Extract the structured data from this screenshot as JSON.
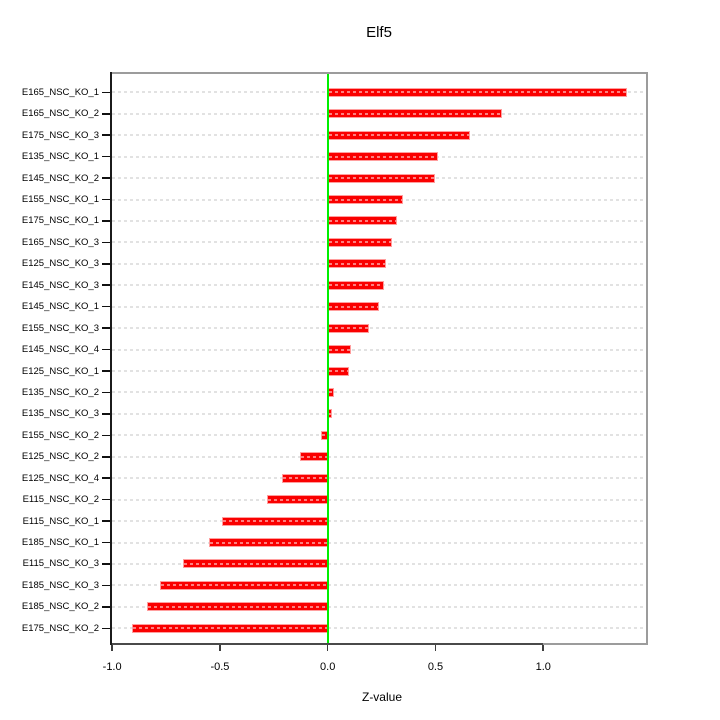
{
  "chart_data": {
    "type": "bar",
    "orientation": "horizontal",
    "title": "Elf5",
    "xlabel": "Z-value",
    "ylabel": "",
    "categories": [
      "E165_NSC_KO_1",
      "E165_NSC_KO_2",
      "E175_NSC_KO_3",
      "E135_NSC_KO_1",
      "E145_NSC_KO_2",
      "E155_NSC_KO_1",
      "E175_NSC_KO_1",
      "E165_NSC_KO_3",
      "E125_NSC_KO_3",
      "E145_NSC_KO_3",
      "E145_NSC_KO_1",
      "E155_NSC_KO_3",
      "E145_NSC_KO_4",
      "E125_NSC_KO_1",
      "E135_NSC_KO_2",
      "E135_NSC_KO_3",
      "E155_NSC_KO_2",
      "E125_NSC_KO_2",
      "E125_NSC_KO_4",
      "E115_NSC_KO_2",
      "E115_NSC_KO_1",
      "E185_NSC_KO_1",
      "E115_NSC_KO_3",
      "E185_NSC_KO_3",
      "E185_NSC_KO_2",
      "E175_NSC_KO_2"
    ],
    "values": [
      1.39,
      0.81,
      0.66,
      0.51,
      0.5,
      0.35,
      0.32,
      0.3,
      0.27,
      0.26,
      0.24,
      0.19,
      0.11,
      0.1,
      0.03,
      0.02,
      -0.03,
      -0.13,
      -0.21,
      -0.28,
      -0.49,
      -0.55,
      -0.67,
      -0.78,
      -0.84,
      -0.91
    ],
    "x_ticks": [
      -1.0,
      -0.5,
      0.0,
      0.5,
      1.0
    ],
    "x_tick_labels": [
      "-1.0",
      "-0.5",
      "0.0",
      "0.5",
      "1.0"
    ],
    "xlim": [
      -1.01,
      1.486
    ],
    "zero_reference_line": 0,
    "grid": "dashed horizontal line per category",
    "legend": "none",
    "colors": {
      "bar_fill": "#fa0000",
      "bar_border": "#ff9e9e",
      "zero_line": "#00ee00",
      "gridline": "#e2e2e2",
      "box_border": "#9c9c9c",
      "axis_line": "#3d3d3d",
      "text": "#000000",
      "background": "#ffffff"
    }
  }
}
